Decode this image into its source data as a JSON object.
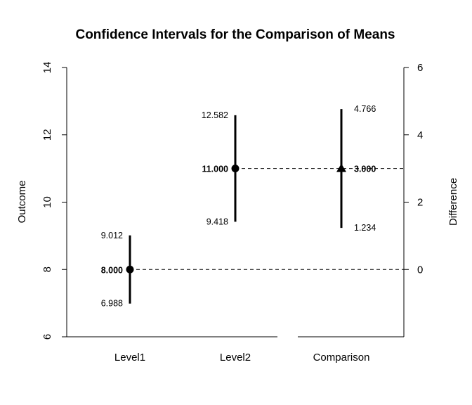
{
  "chart_data": {
    "type": "interval",
    "title": "Confidence Intervals for the Comparison of Means",
    "ylabel_left": "Outcome",
    "ylabel_right": "Difference",
    "left_axis": {
      "ylim": [
        6,
        14
      ],
      "ticks": [
        "6",
        "8",
        "10",
        "12",
        "14"
      ]
    },
    "right_axis": {
      "ticks": [
        "0",
        "2",
        "4",
        "6"
      ]
    },
    "categories": [
      "Level1",
      "Level2",
      "Comparison"
    ],
    "groups": [
      {
        "name": "Level1",
        "mean": 8.0,
        "lower": 6.988,
        "upper": 9.012,
        "mean_label": "8.000",
        "lower_label": "6.988",
        "upper_label": "9.012",
        "marker": "circle"
      },
      {
        "name": "Level2",
        "mean": 11.0,
        "lower": 9.418,
        "upper": 12.582,
        "mean_label": "11.000",
        "lower_label": "9.418",
        "upper_label": "12.582",
        "marker": "circle"
      }
    ],
    "comparison": {
      "name": "Comparison",
      "difference": 3.0,
      "lower": 1.234,
      "upper": 4.766,
      "diff_label": "3.000",
      "lower_label": "1.234",
      "upper_label": "4.766",
      "marker": "triangle"
    },
    "reference_lines": "dashed",
    "grid": false
  }
}
